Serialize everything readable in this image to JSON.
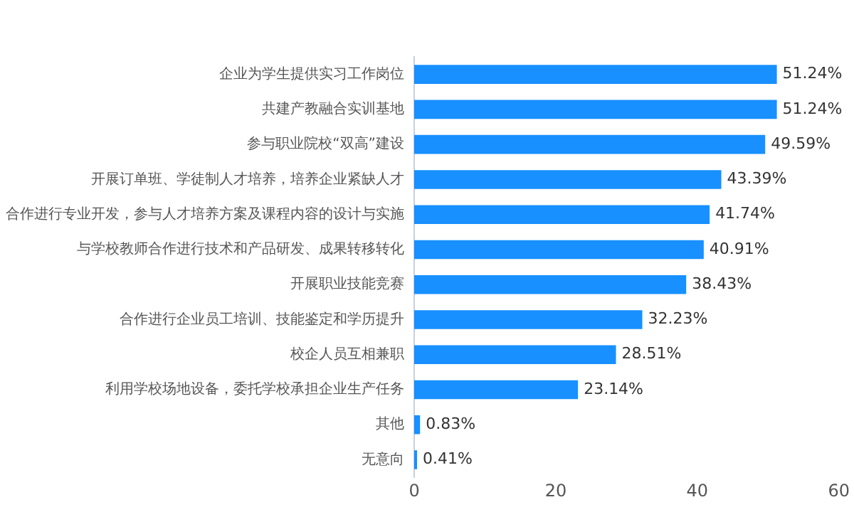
{
  "chart_data": {
    "type": "bar",
    "orientation": "horizontal",
    "categories": [
      "企业为学生提供实习工作岗位",
      "共建产教融合实训基地",
      "参与职业院校“双高”建设",
      "开展订单班、学徒制人才培养，培养企业紧缺人才",
      "合作进行专业开发，参与人才培养方案及课程内容的设计与实施",
      "与学校教师合作进行技术和产品研发、成果转移转化",
      "开展职业技能竞赛",
      "合作进行企业员工培训、技能鉴定和学历提升",
      "校企人员互相兼职",
      "利用学校场地设备，委托学校承担企业生产任务",
      "其他",
      "无意向"
    ],
    "values": [
      51.24,
      51.24,
      49.59,
      43.39,
      41.74,
      40.91,
      38.43,
      32.23,
      28.51,
      23.14,
      0.83,
      0.41
    ],
    "value_labels": [
      "51.24%",
      "51.24%",
      "49.59%",
      "43.39%",
      "41.74%",
      "40.91%",
      "38.43%",
      "32.23%",
      "28.51%",
      "23.14%",
      "0.83%",
      "0.41%"
    ],
    "color": "#1890ff",
    "xlim": [
      0,
      60
    ],
    "xticks": [
      0,
      20,
      40,
      60
    ],
    "grid": false,
    "legend": false
  }
}
